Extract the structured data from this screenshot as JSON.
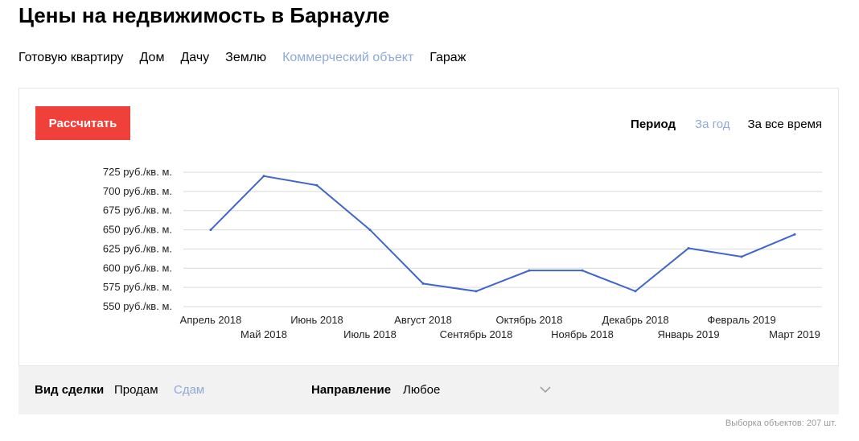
{
  "page": {
    "title": "Цены на недвижимость в Барнауле"
  },
  "categories": [
    {
      "label": "Готовую квартиру",
      "active": false
    },
    {
      "label": "Дом",
      "active": false
    },
    {
      "label": "Дачу",
      "active": false
    },
    {
      "label": "Землю",
      "active": false
    },
    {
      "label": "Коммерческий объект",
      "active": true
    },
    {
      "label": "Гараж",
      "active": false
    }
  ],
  "card": {
    "calc_button": "Рассчитать",
    "period_label": "Период",
    "period_options": [
      {
        "label": "За год",
        "active": true
      },
      {
        "label": "За все время",
        "active": false
      }
    ]
  },
  "colors": {
    "accent_red": "#f0403a",
    "link_blue": "#8fa9d9",
    "line_blue": "#3f66c8",
    "grid": "#d9d9d9"
  },
  "chart_data": {
    "type": "line",
    "categories": [
      "Апрель 2018",
      "Май 2018",
      "Июнь 2018",
      "Июль 2018",
      "Август 2018",
      "Сентябрь 2018",
      "Октябрь 2018",
      "Ноябрь 2018",
      "Декабрь 2018",
      "Январь 2019",
      "Февраль 2019",
      "Март 2019"
    ],
    "values": [
      650,
      720,
      708,
      650,
      580,
      570,
      597,
      597,
      570,
      626,
      615,
      644
    ],
    "y_ticks": [
      550,
      575,
      600,
      625,
      650,
      675,
      700,
      725
    ],
    "y_tick_suffix": " руб./кв. м.",
    "ylim": [
      550,
      725
    ],
    "grid": true,
    "legend": "none"
  },
  "filters": {
    "deal_label": "Вид сделки",
    "deal_options": [
      {
        "label": "Продам",
        "active": false
      },
      {
        "label": "Сдам",
        "active": true
      }
    ],
    "direction_label": "Направление",
    "direction_value": "Любое",
    "direction_icon": "chevron-down-icon"
  },
  "footer": {
    "sample_count": "Выборка объектов: 207 шт."
  }
}
